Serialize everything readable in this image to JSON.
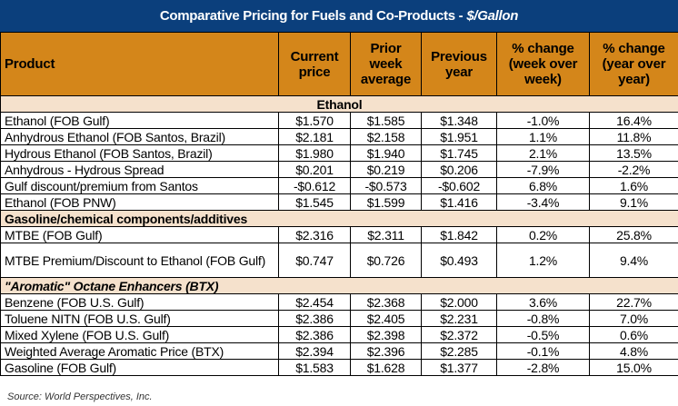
{
  "title": {
    "main": "Comparative Pricing for Fuels and Co-Products - ",
    "unit": "$/Gallon"
  },
  "colors": {
    "title_bg": "#0b3f7c",
    "header_bg": "#d4861a",
    "section_bg": "#f5e1cc"
  },
  "columns": [
    "Product",
    "Current price",
    "Prior week average",
    "Previous year",
    "% change (week over week)",
    "% change (year over year)"
  ],
  "sections": [
    {
      "name": "Ethanol",
      "align": "center",
      "italic": false,
      "rows": [
        [
          "Ethanol (FOB Gulf)",
          "$1.570",
          "$1.585",
          "$1.348",
          "-1.0%",
          "16.4%"
        ],
        [
          "Anhydrous Ethanol (FOB Santos, Brazil)",
          "$2.181",
          "$2.158",
          "$1.951",
          "1.1%",
          "11.8%"
        ],
        [
          "Hydrous Ethanol (FOB Santos, Brazil)",
          "$1.980",
          "$1.940",
          "$1.745",
          "2.1%",
          "13.5%"
        ],
        [
          "Anhydrous - Hydrous Spread",
          "$0.201",
          "$0.219",
          "$0.206",
          "-7.9%",
          "-2.2%"
        ],
        [
          "Gulf discount/premium from Santos",
          "-$0.612",
          "-$0.573",
          "-$0.602",
          "6.8%",
          "1.6%"
        ],
        [
          "Ethanol (FOB PNW)",
          "$1.545",
          "$1.599",
          "$1.416",
          "-3.4%",
          "9.1%"
        ]
      ]
    },
    {
      "name": "Gasoline/chemical components/additives",
      "align": "left",
      "italic": false,
      "rows": [
        [
          "MTBE (FOB Gulf)",
          "$2.316",
          "$2.311",
          "$1.842",
          "0.2%",
          "25.8%"
        ],
        [
          "MTBE Premium/Discount to Ethanol (FOB Gulf)",
          "$0.747",
          "$0.726",
          "$0.493",
          "1.2%",
          "9.4%"
        ]
      ]
    },
    {
      "name": "\"Aromatic\" Octane Enhancers (BTX)",
      "align": "left",
      "italic": true,
      "rows": [
        [
          "Benzene (FOB U.S. Gulf)",
          "$2.454",
          "$2.368",
          "$2.000",
          "3.6%",
          "22.7%"
        ],
        [
          "Toluene NITN (FOB U.S. Gulf)",
          "$2.386",
          "$2.405",
          "$2.231",
          "-0.8%",
          "7.0%"
        ],
        [
          "Mixed Xylene (FOB U.S. Gulf)",
          "$2.386",
          "$2.398",
          "$2.372",
          "-0.5%",
          "0.6%"
        ],
        [
          "Weighted Average Aromatic Price (BTX)",
          "$2.394",
          "$2.396",
          "$2.285",
          "-0.1%",
          "4.8%"
        ],
        [
          "Gasoline (FOB Gulf)",
          "$1.583",
          "$1.628",
          "$1.377",
          "-2.8%",
          "15.0%"
        ]
      ]
    }
  ],
  "source": "Source: World Perspectives, Inc."
}
